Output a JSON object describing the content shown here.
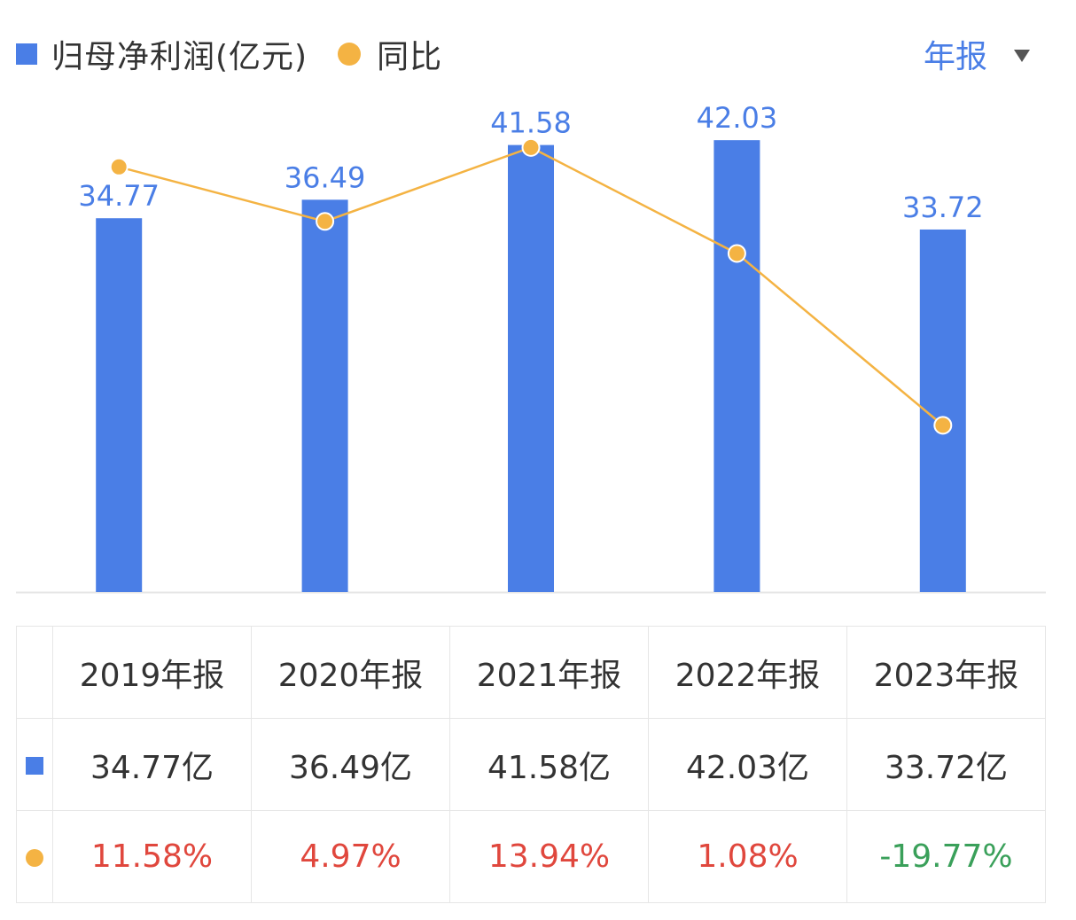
{
  "legend": {
    "bar_label": "归母净利润(亿元)",
    "line_label": "同比"
  },
  "period_selector": {
    "label": "年报"
  },
  "colors": {
    "bar": "#4a7ee6",
    "line": "#f4b343",
    "label_blue": "#4a7ee6",
    "positive": "#e0473d",
    "negative": "#3aa05a",
    "axis": "#e6e6e6"
  },
  "chart_data": {
    "type": "bar",
    "categories": [
      "2019年报",
      "2020年报",
      "2021年报",
      "2022年报",
      "2023年报"
    ],
    "series": [
      {
        "name": "归母净利润(亿元)",
        "type": "bar",
        "values": [
          34.77,
          36.49,
          41.58,
          42.03,
          33.72
        ]
      },
      {
        "name": "同比",
        "type": "line",
        "values": [
          11.58,
          4.97,
          13.94,
          1.08,
          -19.77
        ]
      }
    ],
    "bar_data_labels": [
      "34.77",
      "36.49",
      "41.58",
      "42.03",
      "33.72"
    ],
    "bar_ylim": [
      0,
      46
    ],
    "line_ylim": [
      -40,
      20
    ],
    "legend_position": "top-left",
    "grid": false
  },
  "table": {
    "headers": [
      "2019年报",
      "2020年报",
      "2021年报",
      "2022年报",
      "2023年报"
    ],
    "rows": [
      {
        "marker": "square",
        "color": "#4a7ee6",
        "cells": [
          "34.77亿",
          "36.49亿",
          "41.58亿",
          "42.03亿",
          "33.72亿"
        ]
      },
      {
        "marker": "dot",
        "color": "#f4b343",
        "cells": [
          "11.58%",
          "4.97%",
          "13.94%",
          "1.08%",
          "-19.77%"
        ]
      }
    ]
  }
}
